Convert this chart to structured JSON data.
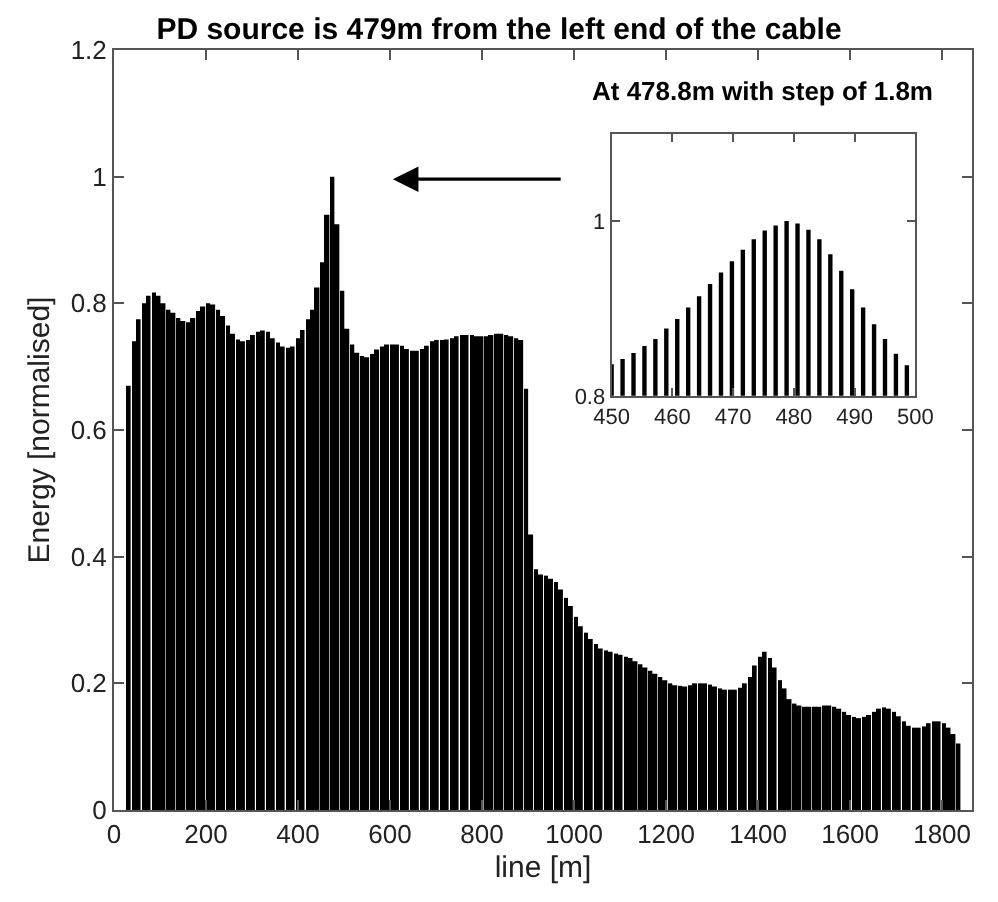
{
  "chart_data": [
    {
      "type": "bar",
      "title": "PD source is 479m from the left end of the cable",
      "xlabel": "line [m]",
      "ylabel": "Energy [normalised]",
      "color": "#000000",
      "x": [
        32.4,
        43.2,
        54,
        64.8,
        75.6,
        86.4,
        97.2,
        108,
        118.8,
        129.6,
        140.4,
        151.2,
        162,
        172.8,
        183.6,
        194.4,
        205.2,
        216,
        226.8,
        237.6,
        248.4,
        259.2,
        270,
        280.8,
        291.6,
        302.4,
        313.2,
        324,
        334.8,
        345.6,
        356.4,
        367.2,
        378,
        388.8,
        399.6,
        410.4,
        421.2,
        432,
        442.8,
        453.6,
        464.4,
        475.2,
        486,
        496.8,
        507.6,
        518.4,
        529.2,
        540,
        550.8,
        561.6,
        572.4,
        583.2,
        594,
        604.8,
        615.6,
        626.4,
        637.2,
        648,
        658.8,
        669.6,
        680.4,
        691.2,
        702,
        712.8,
        723.6,
        734.4,
        745.2,
        756,
        766.8,
        777.6,
        788.4,
        799.2,
        810,
        820.8,
        831.6,
        842.4,
        853.2,
        864,
        874.8,
        885.6,
        896.4,
        907.2,
        918,
        928.8,
        939.6,
        950.4,
        961.2,
        972,
        982.8,
        993.6,
        1004.4,
        1015.2,
        1026,
        1036.8,
        1047.6,
        1058.4,
        1069.2,
        1080,
        1090.8,
        1101.6,
        1112.4,
        1123.2,
        1134,
        1144.8,
        1155.6,
        1166.4,
        1177.2,
        1188,
        1198.8,
        1209.6,
        1220.4,
        1231.2,
        1242,
        1252.8,
        1263.6,
        1274.4,
        1285.2,
        1296,
        1306.8,
        1317.6,
        1328.4,
        1339.2,
        1350,
        1360.8,
        1371.6,
        1382.4,
        1393.2,
        1404,
        1414.8,
        1425.6,
        1436.4,
        1447.2,
        1458,
        1468.8,
        1479.6,
        1490.4,
        1501.2,
        1512,
        1522.8,
        1533.6,
        1544.4,
        1555.2,
        1566,
        1576.8,
        1587.6,
        1598.4,
        1609.2,
        1620,
        1630.8,
        1641.6,
        1652.4,
        1663.2,
        1674,
        1684.8,
        1695.6,
        1706.4,
        1717.2,
        1728,
        1738.8,
        1749.6,
        1760.4,
        1771.2,
        1782,
        1792.8,
        1803.6,
        1814.4,
        1825.2,
        1836
      ],
      "values": [
        0.67,
        0.74,
        0.775,
        0.8,
        0.812,
        0.817,
        0.812,
        0.8,
        0.79,
        0.785,
        0.777,
        0.772,
        0.77,
        0.777,
        0.788,
        0.795,
        0.8,
        0.798,
        0.79,
        0.78,
        0.765,
        0.752,
        0.743,
        0.74,
        0.742,
        0.75,
        0.755,
        0.757,
        0.755,
        0.745,
        0.738,
        0.732,
        0.73,
        0.732,
        0.745,
        0.758,
        0.775,
        0.79,
        0.825,
        0.865,
        0.94,
        1.0,
        0.925,
        0.82,
        0.76,
        0.735,
        0.722,
        0.717,
        0.715,
        0.72,
        0.727,
        0.732,
        0.735,
        0.735,
        0.735,
        0.733,
        0.728,
        0.725,
        0.725,
        0.728,
        0.733,
        0.74,
        0.742,
        0.742,
        0.743,
        0.745,
        0.748,
        0.75,
        0.75,
        0.75,
        0.748,
        0.748,
        0.748,
        0.75,
        0.752,
        0.752,
        0.75,
        0.748,
        0.745,
        0.742,
        0.665,
        0.435,
        0.38,
        0.372,
        0.37,
        0.365,
        0.36,
        0.348,
        0.335,
        0.322,
        0.305,
        0.29,
        0.28,
        0.27,
        0.262,
        0.255,
        0.252,
        0.25,
        0.247,
        0.245,
        0.242,
        0.24,
        0.235,
        0.23,
        0.225,
        0.22,
        0.215,
        0.21,
        0.205,
        0.2,
        0.197,
        0.196,
        0.195,
        0.197,
        0.2,
        0.2,
        0.2,
        0.198,
        0.195,
        0.192,
        0.19,
        0.19,
        0.19,
        0.193,
        0.2,
        0.21,
        0.228,
        0.242,
        0.25,
        0.24,
        0.225,
        0.205,
        0.192,
        0.175,
        0.168,
        0.165,
        0.163,
        0.163,
        0.163,
        0.163,
        0.165,
        0.165,
        0.163,
        0.16,
        0.155,
        0.15,
        0.147,
        0.145,
        0.147,
        0.15,
        0.155,
        0.16,
        0.162,
        0.16,
        0.155,
        0.148,
        0.14,
        0.133,
        0.13,
        0.13,
        0.132,
        0.137,
        0.14,
        0.14,
        0.137,
        0.13,
        0.12,
        0.105
      ],
      "xlim": [
        0,
        1865
      ],
      "ylim": [
        0,
        1.2
      ],
      "xticks": [
        0,
        200,
        400,
        600,
        800,
        1000,
        1200,
        1400,
        1600,
        1800
      ],
      "yticks": [
        0,
        0.2,
        0.4,
        0.6,
        0.8,
        1,
        1.2
      ]
    },
    {
      "type": "bar",
      "title": "At 478.8m with step of 1.8m",
      "color": "#000000",
      "x": [
        450,
        451.8,
        453.6,
        455.4,
        457.2,
        459,
        460.8,
        462.6,
        464.4,
        466.2,
        468,
        469.8,
        471.6,
        473.4,
        475.2,
        477,
        478.8,
        480.6,
        482.4,
        484.2,
        486,
        487.8,
        489.6,
        491.4,
        493.2,
        495,
        496.8,
        498.6
      ],
      "values": [
        0.836,
        0.842,
        0.849,
        0.857,
        0.865,
        0.877,
        0.888,
        0.901,
        0.914,
        0.928,
        0.941,
        0.954,
        0.967,
        0.979,
        0.989,
        0.995,
        1.0,
        0.997,
        0.99,
        0.979,
        0.962,
        0.943,
        0.922,
        0.901,
        0.882,
        0.865,
        0.848,
        0.835
      ],
      "xlim": [
        450,
        500
      ],
      "ylim": [
        0.8,
        1.1
      ],
      "xticks": [
        450,
        460,
        470,
        480,
        490,
        500
      ],
      "yticks": [
        0.8,
        1
      ]
    }
  ]
}
